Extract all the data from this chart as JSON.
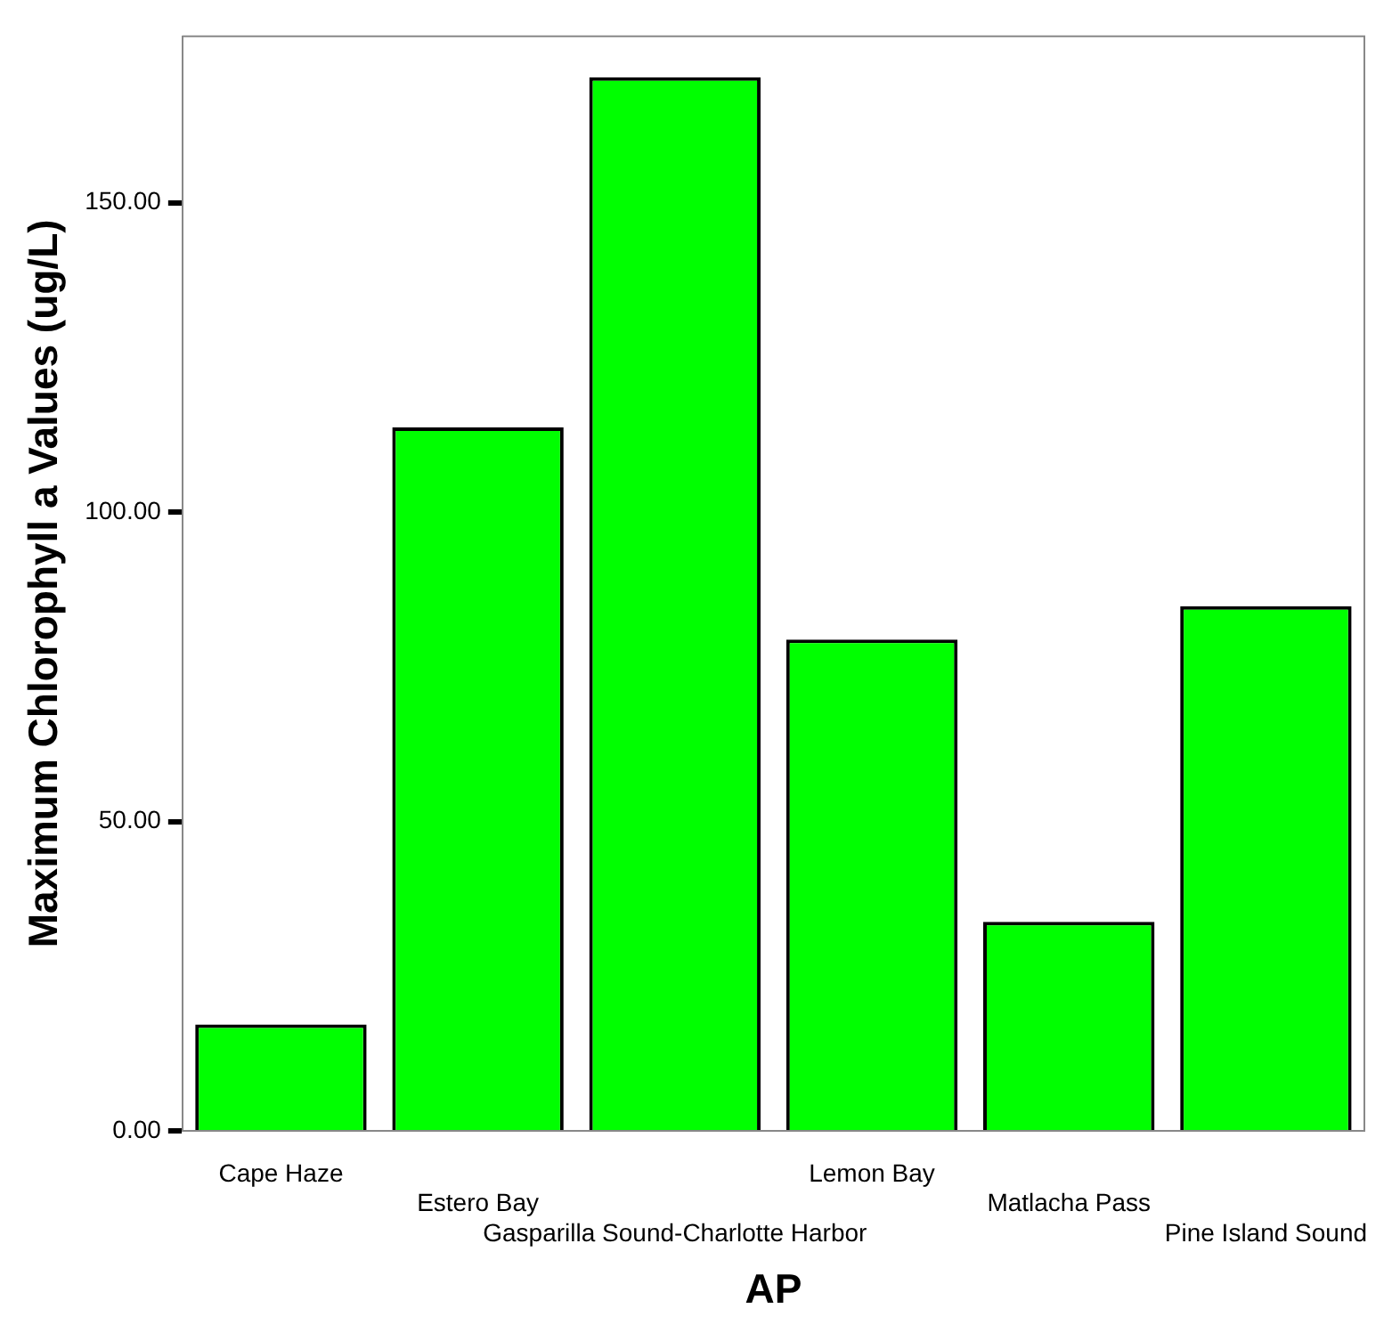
{
  "chart_data": {
    "type": "bar",
    "xlabel": "AP",
    "ylabel": "Maximum Chlorophyll a Values (ug/L)",
    "categories": [
      "Cape Haze",
      "Estero Bay",
      "Gasparilla Sound-Charlotte Harbor",
      "Lemon Bay",
      "Matlacha Pass",
      "Pine Island Sound"
    ],
    "values": [
      17.2,
      113.7,
      170.3,
      79.4,
      33.8,
      84.8
    ],
    "color": "#00ff00",
    "ylim": [
      0,
      176.9
    ],
    "yticks": [
      {
        "value": 0,
        "label": "0.00"
      },
      {
        "value": 50,
        "label": "50.00"
      },
      {
        "value": 100,
        "label": "100.00"
      },
      {
        "value": 150,
        "label": "150.00"
      }
    ],
    "grid": false,
    "legend": false
  }
}
